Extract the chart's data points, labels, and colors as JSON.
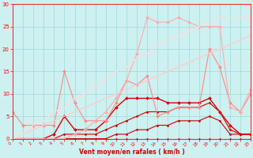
{
  "bg_color": "#cdf0f0",
  "grid_color": "#a0d8d8",
  "axis_color": "#ff0000",
  "xlabel": "Vent moyen/en rafales ( km/h )",
  "xlabel_color": "#cc0000",
  "xmin": 0,
  "xmax": 23,
  "ymin": 0,
  "ymax": 30,
  "yticks": [
    0,
    5,
    10,
    15,
    20,
    25,
    30
  ],
  "xticks": [
    0,
    1,
    2,
    3,
    4,
    5,
    6,
    7,
    8,
    9,
    10,
    11,
    12,
    13,
    14,
    15,
    16,
    17,
    18,
    19,
    20,
    21,
    22,
    23
  ],
  "series": [
    {
      "x": [
        0,
        1,
        2,
        3,
        4,
        5,
        6,
        7,
        8,
        9,
        10,
        11,
        12,
        13,
        14,
        15,
        16,
        17,
        18,
        19,
        20,
        21,
        22,
        23
      ],
      "y": [
        0,
        0,
        0,
        0,
        0,
        0,
        0,
        0,
        0,
        0,
        0,
        0,
        0,
        0,
        0,
        0,
        0,
        0,
        0,
        0,
        0,
        0,
        0,
        0
      ],
      "color": "#cc0000",
      "lw": 0.8,
      "marker": "D",
      "ms": 1.5
    },
    {
      "x": [
        0,
        1,
        2,
        3,
        4,
        5,
        6,
        7,
        8,
        9,
        10,
        11,
        12,
        13,
        14,
        15,
        16,
        17,
        18,
        19,
        20,
        21,
        22,
        23
      ],
      "y": [
        0,
        0,
        0,
        0,
        0,
        0,
        0,
        0,
        0,
        0,
        1,
        1,
        2,
        2,
        3,
        3,
        4,
        4,
        4,
        5,
        4,
        1,
        1,
        1
      ],
      "color": "#cc0000",
      "lw": 0.8,
      "marker": "D",
      "ms": 1.5
    },
    {
      "x": [
        0,
        1,
        2,
        3,
        4,
        5,
        6,
        7,
        8,
        9,
        10,
        11,
        12,
        13,
        14,
        15,
        16,
        17,
        18,
        19,
        20,
        21,
        22,
        23
      ],
      "y": [
        0,
        0,
        0,
        0,
        0,
        1,
        1,
        1,
        1,
        2,
        3,
        4,
        5,
        6,
        6,
        6,
        7,
        7,
        7,
        8,
        6,
        2,
        1,
        1
      ],
      "color": "#cc0000",
      "lw": 0.8,
      "marker": "D",
      "ms": 1.5
    },
    {
      "x": [
        0,
        1,
        2,
        3,
        4,
        5,
        6,
        7,
        8,
        9,
        10,
        11,
        12,
        13,
        14,
        15,
        16,
        17,
        18,
        19,
        20,
        21,
        22,
        23
      ],
      "y": [
        0,
        0,
        0,
        0,
        1,
        5,
        2,
        2,
        2,
        4,
        7,
        9,
        9,
        9,
        9,
        8,
        8,
        8,
        8,
        9,
        6,
        3,
        1,
        1
      ],
      "color": "#dd0000",
      "lw": 1.0,
      "marker": "D",
      "ms": 2.0
    },
    {
      "x": [
        0,
        1,
        2,
        3,
        4,
        5,
        6,
        7,
        8,
        9,
        10,
        11,
        12,
        13,
        14,
        15,
        16,
        17,
        18,
        19,
        20,
        21,
        22,
        23
      ],
      "y": [
        6,
        3,
        3,
        3,
        3,
        15,
        8,
        4,
        4,
        4,
        8,
        13,
        12,
        14,
        5,
        6,
        7,
        7,
        7,
        20,
        16,
        8,
        6,
        10
      ],
      "color": "#ff8888",
      "lw": 0.8,
      "marker": "D",
      "ms": 2.0
    },
    {
      "x": [
        0,
        1,
        2,
        3,
        4,
        5,
        6,
        7,
        8,
        9,
        10,
        11,
        12,
        13,
        14,
        15,
        16,
        17,
        18,
        19,
        20,
        21,
        22,
        23
      ],
      "y": [
        0,
        0,
        0,
        0,
        0,
        0,
        1,
        2,
        4,
        6,
        9,
        13,
        19,
        27,
        26,
        26,
        27,
        26,
        25,
        25,
        25,
        7,
        6,
        11
      ],
      "color": "#ffaaaa",
      "lw": 0.8,
      "marker": "D",
      "ms": 2.0
    },
    {
      "x": [
        0,
        1,
        2,
        3,
        4,
        5,
        6,
        7,
        8,
        9,
        10,
        11,
        12,
        13,
        14,
        15,
        16,
        17,
        18,
        19,
        20,
        21,
        22,
        23
      ],
      "y": [
        0,
        1,
        2,
        3,
        4,
        5,
        6,
        7,
        8,
        9,
        10,
        11,
        12,
        13,
        14,
        15,
        16,
        17,
        18,
        19,
        20,
        21,
        22,
        23
      ],
      "color": "#ffcccc",
      "lw": 1.0,
      "marker": null,
      "ms": 0
    },
    {
      "x": [
        0,
        1,
        2,
        3,
        4,
        5,
        6,
        7,
        8,
        9,
        10,
        11,
        12,
        13,
        14,
        15,
        16,
        17,
        18,
        19,
        20,
        21,
        22,
        23
      ],
      "y": [
        0,
        1,
        3,
        4,
        6,
        7,
        9,
        10,
        12,
        13,
        15,
        16,
        18,
        19,
        21,
        22,
        23,
        24,
        25,
        26,
        27,
        27,
        27,
        27
      ],
      "color": "#ffdddd",
      "lw": 1.0,
      "marker": null,
      "ms": 0
    }
  ]
}
